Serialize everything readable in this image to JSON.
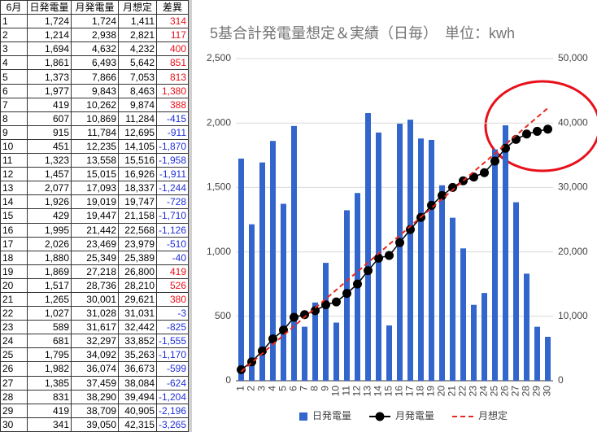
{
  "table": {
    "header": [
      "6月",
      "日発電量",
      "月発電量",
      "月想定",
      "差異"
    ],
    "rows": [
      [
        "1",
        "1,724",
        "1,724",
        "1,411",
        "314"
      ],
      [
        "2",
        "1,214",
        "2,938",
        "2,821",
        "117"
      ],
      [
        "3",
        "1,694",
        "4,632",
        "4,232",
        "400"
      ],
      [
        "4",
        "1,861",
        "6,493",
        "5,642",
        "851"
      ],
      [
        "5",
        "1,373",
        "7,866",
        "7,053",
        "813"
      ],
      [
        "6",
        "1,977",
        "9,843",
        "8,463",
        "1,380"
      ],
      [
        "7",
        "419",
        "10,262",
        "9,874",
        "388"
      ],
      [
        "8",
        "607",
        "10,869",
        "11,284",
        "-415"
      ],
      [
        "9",
        "915",
        "11,784",
        "12,695",
        "-911"
      ],
      [
        "10",
        "451",
        "12,235",
        "14,105",
        "-1,870"
      ],
      [
        "11",
        "1,323",
        "13,558",
        "15,516",
        "-1,958"
      ],
      [
        "12",
        "1,457",
        "15,015",
        "16,926",
        "-1,911"
      ],
      [
        "13",
        "2,077",
        "17,093",
        "18,337",
        "-1,244"
      ],
      [
        "14",
        "1,926",
        "19,019",
        "19,747",
        "-728"
      ],
      [
        "15",
        "429",
        "19,447",
        "21,158",
        "-1,710"
      ],
      [
        "16",
        "1,995",
        "21,442",
        "22,568",
        "-1,126"
      ],
      [
        "17",
        "2,026",
        "23,469",
        "23,979",
        "-510"
      ],
      [
        "18",
        "1,880",
        "25,349",
        "25,389",
        "-40"
      ],
      [
        "19",
        "1,869",
        "27,218",
        "26,800",
        "419"
      ],
      [
        "20",
        "1,517",
        "28,736",
        "28,210",
        "526"
      ],
      [
        "21",
        "1,265",
        "30,001",
        "29,621",
        "380"
      ],
      [
        "22",
        "1,027",
        "31,028",
        "31,031",
        "-3"
      ],
      [
        "23",
        "589",
        "31,617",
        "32,442",
        "-825"
      ],
      [
        "24",
        "681",
        "32,297",
        "33,852",
        "-1,555"
      ],
      [
        "25",
        "1,795",
        "34,092",
        "35,263",
        "-1,170"
      ],
      [
        "26",
        "1,982",
        "36,074",
        "36,673",
        "-599"
      ],
      [
        "27",
        "1,385",
        "37,459",
        "38,084",
        "-624"
      ],
      [
        "28",
        "831",
        "38,290",
        "39,494",
        "-1,204"
      ],
      [
        "29",
        "419",
        "38,709",
        "40,905",
        "-2,196"
      ],
      [
        "30",
        "341",
        "39,050",
        "42,315",
        "-3,265"
      ]
    ]
  },
  "chart_data": {
    "type": "bar",
    "title": "5基合計発電量想定＆実績（日毎）　単位：kwh",
    "categories": [
      "1",
      "2",
      "3",
      "4",
      "5",
      "6",
      "7",
      "8",
      "9",
      "10",
      "11",
      "12",
      "13",
      "14",
      "15",
      "16",
      "17",
      "18",
      "19",
      "20",
      "21",
      "22",
      "23",
      "24",
      "25",
      "26",
      "27",
      "28",
      "29",
      "30"
    ],
    "series": [
      {
        "name": "日発電量",
        "type": "bar",
        "color": "#3366cc",
        "values": [
          1724,
          1214,
          1694,
          1861,
          1373,
          1977,
          419,
          607,
          915,
          451,
          1323,
          1457,
          2077,
          1926,
          429,
          1995,
          2026,
          1880,
          1869,
          1517,
          1265,
          1027,
          589,
          681,
          1795,
          1982,
          1385,
          831,
          419,
          341
        ]
      },
      {
        "name": "月発電量",
        "type": "line",
        "axis": "y2",
        "color": "#000000",
        "markers": true,
        "values": [
          1724,
          2938,
          4632,
          6493,
          7866,
          9843,
          10262,
          10869,
          11784,
          12235,
          13558,
          15015,
          17093,
          19019,
          19447,
          21442,
          23469,
          25349,
          27218,
          28736,
          30001,
          31028,
          31617,
          32297,
          34092,
          36074,
          37459,
          38290,
          38709,
          39050
        ]
      },
      {
        "name": "月想定",
        "type": "line",
        "axis": "y2",
        "color": "#e8281e",
        "dashed": true,
        "values": [
          1411,
          2821,
          4232,
          5642,
          7053,
          8463,
          9874,
          11284,
          12695,
          14105,
          15516,
          16926,
          18337,
          19747,
          21158,
          22568,
          23979,
          25389,
          26800,
          28210,
          29621,
          31031,
          32442,
          33852,
          35263,
          36673,
          38084,
          39494,
          40905,
          42315
        ]
      }
    ],
    "ylim": [
      0,
      2500
    ],
    "yticks": [
      0,
      500,
      {
        "value": 1000,
        "label": "1,000"
      },
      {
        "value": 1500,
        "label": "1,500"
      },
      {
        "value": 2000,
        "label": "2,000"
      },
      {
        "value": 2500,
        "label": "2,500"
      }
    ],
    "y2lim": [
      0,
      50000
    ],
    "y2ticks": [
      0,
      {
        "value": 10000,
        "label": "10,000"
      },
      {
        "value": 20000,
        "label": "20,000"
      },
      {
        "value": 30000,
        "label": "30,000"
      },
      {
        "value": 40000,
        "label": "40,000"
      },
      {
        "value": 50000,
        "label": "50,000"
      }
    ],
    "grid": true
  }
}
